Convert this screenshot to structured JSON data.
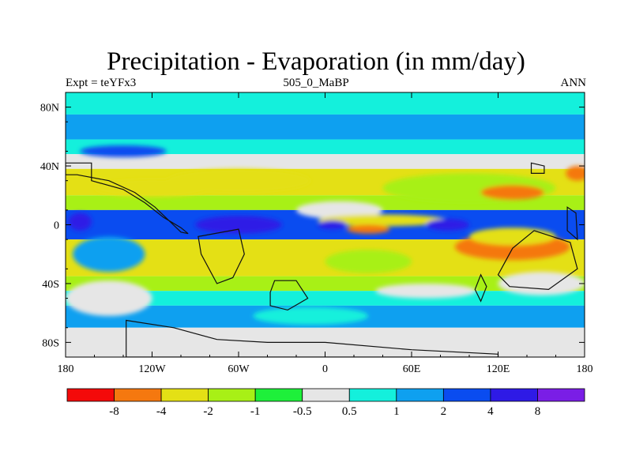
{
  "chart_data": {
    "type": "heatmap",
    "title": "Precipitation - Evaporation (in mm/day)",
    "subtitle_left": "Expt = teYFx3",
    "subtitle_center": "505_0_MaBP",
    "subtitle_right": "ANN",
    "x_ticks": [
      "180",
      "120W",
      "60W",
      "0",
      "60E",
      "120E",
      "180"
    ],
    "x_tick_values": [
      -180,
      -120,
      -60,
      0,
      60,
      120,
      180
    ],
    "y_ticks": [
      "80N",
      "40N",
      "0",
      "40S",
      "80S"
    ],
    "y_tick_values": [
      80,
      40,
      0,
      -40,
      -80
    ],
    "xlim": [
      -180,
      180
    ],
    "ylim": [
      -90,
      90
    ],
    "colorbar": {
      "levels": [
        "-8",
        "-4",
        "-2",
        "-1",
        "-0.5",
        "0.5",
        "1",
        "2",
        "4",
        "8"
      ],
      "colors": [
        "#f40a0a",
        "#f5780f",
        "#e4e015",
        "#a8f016",
        "#1ef03a",
        "#e6e6e6",
        "#14f0dc",
        "#0ea0f0",
        "#0a4cf0",
        "#2e1ae6",
        "#7a1ee6"
      ]
    },
    "field_bands": [
      {
        "lat_range": [
          90,
          75
        ],
        "color": "#14f0dc"
      },
      {
        "lat_range": [
          75,
          58
        ],
        "color": "#0ea0f0"
      },
      {
        "lat_range": [
          58,
          48
        ],
        "color": "#14f0dc"
      },
      {
        "lat_range": [
          48,
          38
        ],
        "color": "#e6e6e6"
      },
      {
        "lat_range": [
          38,
          20
        ],
        "color": "#e4e015"
      },
      {
        "lat_range": [
          20,
          10
        ],
        "color": "#a8f016"
      },
      {
        "lat_range": [
          10,
          -10
        ],
        "color": "#0a4cf0"
      },
      {
        "lat_range": [
          -10,
          -35
        ],
        "color": "#e4e015"
      },
      {
        "lat_range": [
          -35,
          -45
        ],
        "color": "#a8f016"
      },
      {
        "lat_range": [
          -45,
          -55
        ],
        "color": "#14f0dc"
      },
      {
        "lat_range": [
          -55,
          -70
        ],
        "color": "#0ea0f0"
      },
      {
        "lat_range": [
          -70,
          -90
        ],
        "color": "#e6e6e6"
      }
    ],
    "field_patches": [
      {
        "lon": -140,
        "lat": 50,
        "rlon": 30,
        "rlat": 4,
        "color": "#0a4cf0"
      },
      {
        "lon": -60,
        "lat": 30,
        "rlon": 50,
        "rlat": 8,
        "color": "#e4e015"
      },
      {
        "lon": -120,
        "lat": 25,
        "rlon": 40,
        "rlat": 6,
        "color": "#e4e015"
      },
      {
        "lon": 100,
        "lat": 25,
        "rlon": 60,
        "rlat": 10,
        "color": "#a8f016"
      },
      {
        "lon": 130,
        "lat": 22,
        "rlon": 22,
        "rlat": 5,
        "color": "#f5780f"
      },
      {
        "lon": 175,
        "lat": 35,
        "rlon": 8,
        "rlat": 5,
        "color": "#f5780f"
      },
      {
        "lon": 10,
        "lat": 10,
        "rlon": 30,
        "rlat": 6,
        "color": "#e6e6e6"
      },
      {
        "lon": 40,
        "lat": 3,
        "rlon": 45,
        "rlat": 4,
        "color": "#e4e015"
      },
      {
        "lon": 30,
        "lat": -3,
        "rlon": 15,
        "rlat": 3,
        "color": "#f5780f"
      },
      {
        "lon": 130,
        "lat": -15,
        "rlon": 40,
        "rlat": 9,
        "color": "#f5780f"
      },
      {
        "lon": 130,
        "lat": -8,
        "rlon": 30,
        "rlat": 6,
        "color": "#e4e015"
      },
      {
        "lon": -150,
        "lat": -20,
        "rlon": 25,
        "rlat": 12,
        "color": "#0ea0f0"
      },
      {
        "lon": -150,
        "lat": -50,
        "rlon": 30,
        "rlat": 12,
        "color": "#e6e6e6"
      },
      {
        "lon": 30,
        "lat": -25,
        "rlon": 30,
        "rlat": 8,
        "color": "#a8f016"
      },
      {
        "lon": 70,
        "lat": -45,
        "rlon": 35,
        "rlat": 5,
        "color": "#e6e6e6"
      },
      {
        "lon": 150,
        "lat": -40,
        "rlon": 30,
        "rlat": 8,
        "color": "#e6e6e6"
      },
      {
        "lon": -10,
        "lat": -62,
        "rlon": 40,
        "rlat": 6,
        "color": "#14f0dc"
      },
      {
        "lon": -60,
        "lat": 0,
        "rlon": 30,
        "rlat": 6,
        "color": "#2e1ae6"
      },
      {
        "lon": 5,
        "lat": 0,
        "rlon": 10,
        "rlat": 3,
        "color": "#2e1ae6"
      },
      {
        "lon": 85,
        "lat": 0,
        "rlon": 15,
        "rlat": 4,
        "color": "#2e1ae6"
      },
      {
        "lon": -170,
        "lat": 2,
        "rlon": 8,
        "rlat": 6,
        "color": "#2e1ae6"
      }
    ],
    "land_masses": [
      {
        "name": "north-america",
        "outline": [
          [
            -180,
            42
          ],
          [
            -162,
            42
          ],
          [
            -162,
            30
          ],
          [
            -140,
            24
          ],
          [
            -125,
            15
          ],
          [
            -112,
            5
          ],
          [
            -100,
            -2
          ],
          [
            -95,
            -6
          ],
          [
            -100,
            -5
          ],
          [
            -118,
            12
          ],
          [
            -132,
            22
          ],
          [
            -150,
            30
          ],
          [
            -172,
            34
          ],
          [
            -180,
            34
          ]
        ]
      },
      {
        "name": "south-america",
        "outline": [
          [
            -88,
            -8
          ],
          [
            -60,
            -3
          ],
          [
            -56,
            -20
          ],
          [
            -64,
            -36
          ],
          [
            -75,
            -40
          ],
          [
            -86,
            -20
          ]
        ]
      },
      {
        "name": "africa",
        "outline": [
          [
            -38,
            -46
          ],
          [
            -35,
            -38
          ],
          [
            -20,
            -38
          ],
          [
            -12,
            -50
          ],
          [
            -26,
            -58
          ],
          [
            -38,
            -55
          ]
        ]
      },
      {
        "name": "australia",
        "outline": [
          [
            120,
            -34
          ],
          [
            130,
            -16
          ],
          [
            145,
            -4
          ],
          [
            170,
            -12
          ],
          [
            175,
            -30
          ],
          [
            155,
            -44
          ],
          [
            128,
            -42
          ]
        ]
      },
      {
        "name": "asia-north",
        "outline": [
          [
            143,
            42
          ],
          [
            152,
            40
          ],
          [
            152,
            35
          ],
          [
            143,
            35
          ]
        ]
      },
      {
        "name": "asia-east",
        "outline": [
          [
            168,
            12
          ],
          [
            174,
            8
          ],
          [
            175,
            -10
          ],
          [
            168,
            -4
          ]
        ]
      },
      {
        "name": "india",
        "outline": [
          [
            108,
            -34
          ],
          [
            112,
            -42
          ],
          [
            108,
            -52
          ],
          [
            104,
            -44
          ]
        ]
      },
      {
        "name": "antarctica",
        "outline": [
          [
            -138,
            -65
          ],
          [
            -105,
            -70
          ],
          [
            -75,
            -78
          ],
          [
            -40,
            -80
          ],
          [
            0,
            -80
          ],
          [
            60,
            -85
          ],
          [
            120,
            -88
          ],
          [
            120,
            -90
          ],
          [
            -138,
            -90
          ]
        ]
      }
    ]
  }
}
